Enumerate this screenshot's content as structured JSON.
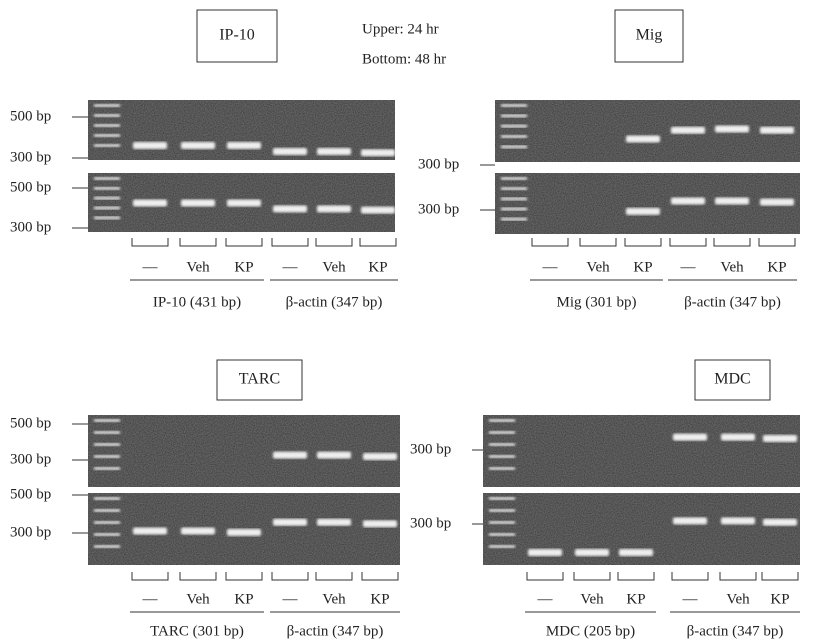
{
  "note": {
    "lines": [
      "Upper: 24 hr",
      "Bottom: 48 hr"
    ]
  },
  "panels": [
    {
      "title": "IP-10",
      "upper_markers": [
        "500 bp",
        "300 bp"
      ],
      "lower_markers": [
        "500 bp",
        "300 bp"
      ],
      "lanes": [
        "—",
        "Veh",
        "KP",
        "—",
        "Veh",
        "KP"
      ],
      "groups": [
        "IP-10 (431 bp)",
        "β-actin (347 bp)"
      ]
    },
    {
      "title": "Mig",
      "upper_markers": [
        "300 bp"
      ],
      "lower_markers": [
        "300 bp"
      ],
      "lanes": [
        "—",
        "Veh",
        "KP",
        "—",
        "Veh",
        "KP"
      ],
      "groups": [
        "Mig (301 bp)",
        "β-actin (347 bp)"
      ]
    },
    {
      "title": "TARC",
      "upper_markers": [
        "500 bp",
        "300 bp"
      ],
      "lower_markers": [
        "500 bp",
        "300 bp"
      ],
      "lanes": [
        "—",
        "Veh",
        "KP",
        "—",
        "Veh",
        "KP"
      ],
      "groups": [
        "TARC (301 bp)",
        "β-actin (347 bp)"
      ]
    },
    {
      "title": "MDC",
      "upper_markers": [
        "300 bp"
      ],
      "lower_markers": [
        "300 bp"
      ],
      "lanes": [
        "—",
        "Veh",
        "KP",
        "—",
        "Veh",
        "KP"
      ],
      "groups": [
        "MDC (205 bp)",
        "β-actin (347 bp)"
      ]
    }
  ]
}
